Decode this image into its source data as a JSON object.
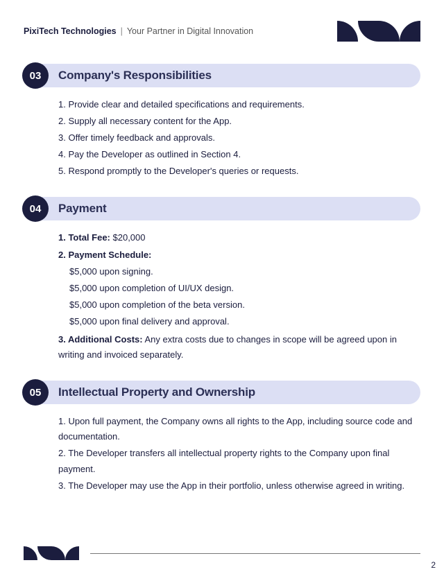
{
  "header": {
    "company": "PixiTech Technologies",
    "tagline": "Your Partner in Digital Innovation"
  },
  "colors": {
    "brand": "#1b1d3e",
    "section_bg": "#dcdff4",
    "text": "#1b1d3e",
    "muted": "#555"
  },
  "sections": [
    {
      "num": "03",
      "title": "Company's Responsibilities",
      "type": "ordered",
      "items": [
        "1. Provide clear and detailed specifications and requirements.",
        "2. Supply all necessary content for the App.",
        "3. Offer timely feedback and approvals.",
        "4. Pay the Developer as outlined in Section 4.",
        "5. Respond promptly to the Developer's queries or requests."
      ]
    },
    {
      "num": "04",
      "title": "Payment",
      "type": "payment",
      "total_label": "1. Total Fee:",
      "total_value": " $20,000",
      "schedule_label": "2. Payment Schedule:",
      "schedule": [
        "$5,000 upon signing.",
        "$5,000 upon completion of UI/UX design.",
        "$5,000 upon completion of the beta version.",
        "$5,000 upon final delivery and approval."
      ],
      "additional_label": "3. Additional Costs:",
      "additional_value": " Any extra costs due to changes in scope will be agreed upon in writing and invoiced separately."
    },
    {
      "num": "05",
      "title": "Intellectual Property and Ownership",
      "type": "ordered",
      "items": [
        "1. Upon full payment, the Company owns all rights to the App, including source code and documentation.",
        "2. The Developer transfers all intellectual property rights to the Company upon final payment.",
        "3. The Developer may use the App in their portfolio, unless otherwise agreed in writing."
      ]
    }
  ],
  "page_number": "2"
}
